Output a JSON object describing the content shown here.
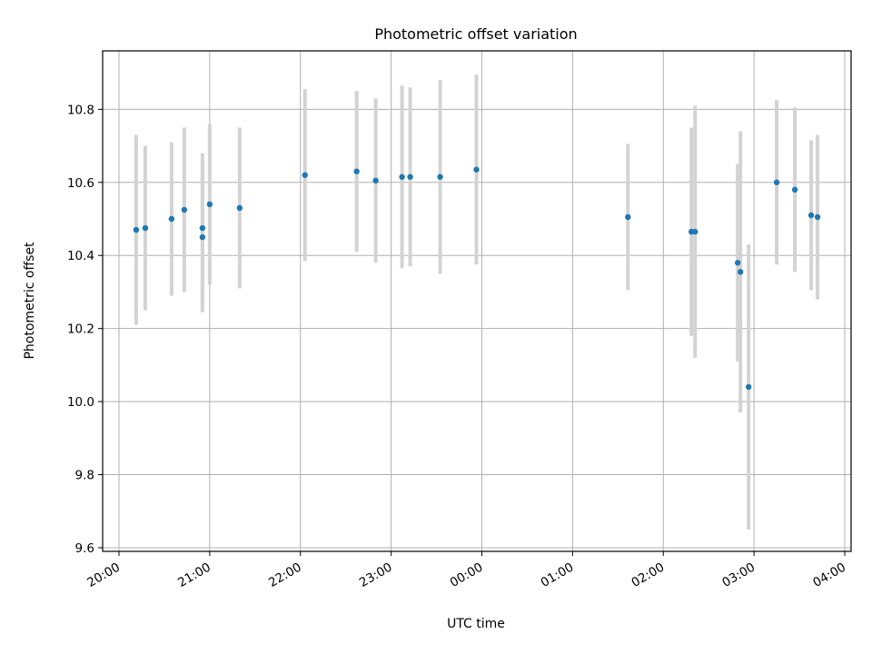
{
  "chart_data": {
    "type": "scatter",
    "title": "Photometric offset variation",
    "xlabel": "UTC time",
    "ylabel": "Photometric offset",
    "x_axis": {
      "kind": "time",
      "start_label": "20:00",
      "xlim_hours": [
        -0.18,
        8.07
      ],
      "ticks_hours": [
        0,
        1,
        2,
        3,
        4,
        5,
        6,
        7,
        8
      ],
      "tick_labels": [
        "20:00",
        "21:00",
        "22:00",
        "23:00",
        "00:00",
        "01:00",
        "02:00",
        "03:00",
        "04:00"
      ]
    },
    "ylim": [
      9.59,
      10.96
    ],
    "y_ticks": [
      9.6,
      9.8,
      10.0,
      10.2,
      10.4,
      10.6,
      10.8
    ],
    "y_tick_labels": [
      "9.6",
      "9.8",
      "10.0",
      "10.2",
      "10.4",
      "10.6",
      "10.8"
    ],
    "grid": true,
    "marker_color": "#1f77b4",
    "errorbar_color": "#d3d3d3",
    "points": [
      {
        "x": 0.19,
        "y": 10.47,
        "err": 0.26
      },
      {
        "x": 0.29,
        "y": 10.475,
        "err": 0.225
      },
      {
        "x": 0.58,
        "y": 10.5,
        "err": 0.21
      },
      {
        "x": 0.72,
        "y": 10.525,
        "err": 0.225
      },
      {
        "x": 0.92,
        "y": 10.475,
        "err": 0.205
      },
      {
        "x": 0.92,
        "y": 10.45,
        "err": 0.205
      },
      {
        "x": 1.0,
        "y": 10.54,
        "err": 0.22
      },
      {
        "x": 1.33,
        "y": 10.53,
        "err": 0.22
      },
      {
        "x": 2.05,
        "y": 10.62,
        "err": 0.235
      },
      {
        "x": 2.62,
        "y": 10.63,
        "err": 0.22
      },
      {
        "x": 2.83,
        "y": 10.605,
        "err": 0.225
      },
      {
        "x": 3.12,
        "y": 10.615,
        "err": 0.25
      },
      {
        "x": 3.21,
        "y": 10.615,
        "err": 0.245
      },
      {
        "x": 3.54,
        "y": 10.615,
        "err": 0.265
      },
      {
        "x": 3.94,
        "y": 10.635,
        "err": 0.26
      },
      {
        "x": 5.61,
        "y": 10.505,
        "err": 0.2
      },
      {
        "x": 6.31,
        "y": 10.465,
        "err": 0.285
      },
      {
        "x": 6.35,
        "y": 10.465,
        "err": 0.345
      },
      {
        "x": 6.82,
        "y": 10.38,
        "err": 0.27
      },
      {
        "x": 6.85,
        "y": 10.355,
        "err": 0.385
      },
      {
        "x": 6.94,
        "y": 10.04,
        "err": 0.39
      },
      {
        "x": 7.25,
        "y": 10.6,
        "err": 0.225
      },
      {
        "x": 7.45,
        "y": 10.58,
        "err": 0.225
      },
      {
        "x": 7.63,
        "y": 10.51,
        "err": 0.205
      },
      {
        "x": 7.7,
        "y": 10.505,
        "err": 0.225
      }
    ]
  }
}
